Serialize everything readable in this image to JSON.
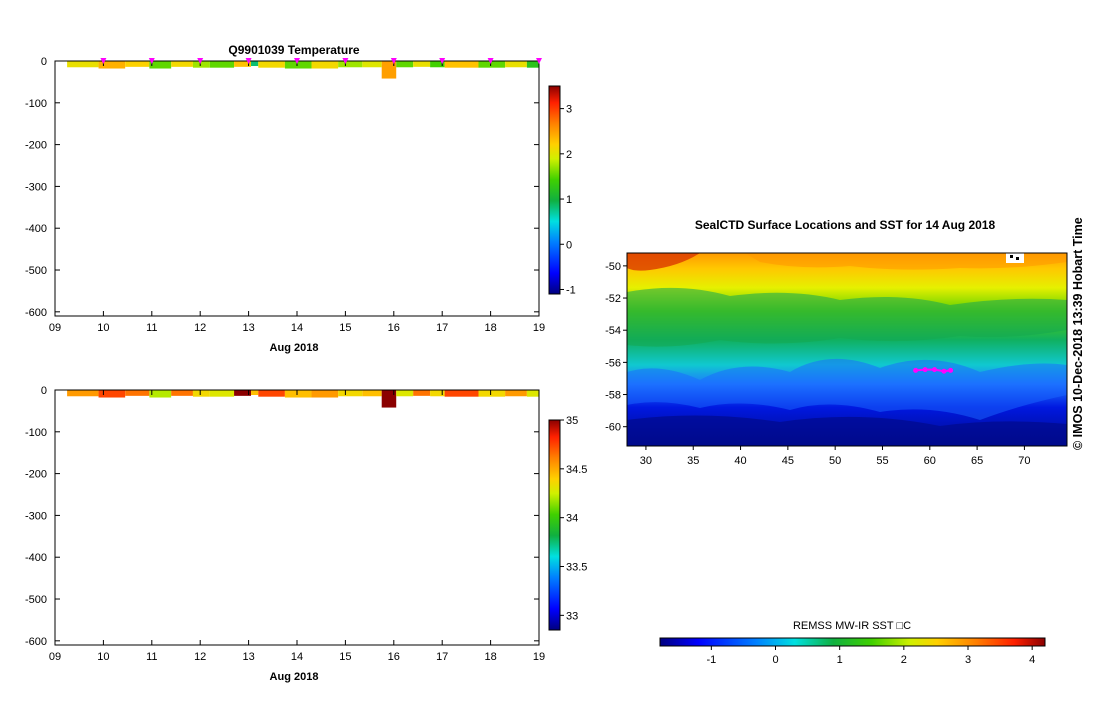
{
  "chart_data": [
    {
      "type": "heatmap",
      "title": "Q9901039  Temperature",
      "xlabel": "Aug 2018",
      "x_ticks": [
        "09",
        "10",
        "11",
        "12",
        "13",
        "14",
        "15",
        "16",
        "17",
        "18",
        "19"
      ],
      "y_ticks": [
        0,
        -100,
        -200,
        -300,
        -400,
        -500,
        -600
      ],
      "xlim": [
        9,
        19
      ],
      "ylim": [
        -610,
        0
      ],
      "colorbar": {
        "ticks": [
          -1,
          0,
          1,
          2,
          3
        ],
        "range": [
          -1.1,
          3.5
        ]
      },
      "surface_markers": [
        10,
        11,
        12,
        13,
        14,
        15,
        16,
        17,
        18,
        19
      ],
      "profiles": [
        {
          "t0": 9.25,
          "t1": 9.9,
          "depth": 15,
          "value": 1.9
        },
        {
          "t0": 9.9,
          "t1": 10.45,
          "depth": 18,
          "value": 2.3
        },
        {
          "t0": 10.45,
          "t1": 10.95,
          "depth": 14,
          "value": 2.1
        },
        {
          "t0": 10.95,
          "t1": 11.4,
          "depth": 18,
          "value": 1.3
        },
        {
          "t0": 11.4,
          "t1": 11.85,
          "depth": 14,
          "value": 2.0
        },
        {
          "t0": 11.85,
          "t1": 12.2,
          "depth": 16,
          "value": 1.5
        },
        {
          "t0": 12.2,
          "t1": 12.7,
          "depth": 16,
          "value": 1.3
        },
        {
          "t0": 12.7,
          "t1": 13.05,
          "depth": 14,
          "value": 2.2
        },
        {
          "t0": 13.05,
          "t1": 13.2,
          "depth": 12,
          "value": 0.6
        },
        {
          "t0": 13.2,
          "t1": 13.75,
          "depth": 16,
          "value": 2.0
        },
        {
          "t0": 13.75,
          "t1": 14.3,
          "depth": 18,
          "value": 1.3
        },
        {
          "t0": 14.3,
          "t1": 14.85,
          "depth": 18,
          "value": 2.0
        },
        {
          "t0": 14.85,
          "t1": 15.35,
          "depth": 15,
          "value": 1.5
        },
        {
          "t0": 15.35,
          "t1": 15.75,
          "depth": 15,
          "value": 1.8
        },
        {
          "t0": 15.75,
          "t1": 16.05,
          "depth": 42,
          "value": 2.4
        },
        {
          "t0": 16.05,
          "t1": 16.4,
          "depth": 15,
          "value": 1.3
        },
        {
          "t0": 16.4,
          "t1": 16.75,
          "depth": 14,
          "value": 1.9
        },
        {
          "t0": 16.75,
          "t1": 17.05,
          "depth": 15,
          "value": 1.2
        },
        {
          "t0": 17.05,
          "t1": 17.75,
          "depth": 16,
          "value": 2.2
        },
        {
          "t0": 17.75,
          "t1": 18.3,
          "depth": 16,
          "value": 1.3
        },
        {
          "t0": 18.3,
          "t1": 18.75,
          "depth": 15,
          "value": 1.9
        },
        {
          "t0": 18.75,
          "t1": 19.0,
          "depth": 16,
          "value": 1.0
        }
      ]
    },
    {
      "type": "heatmap",
      "title": "",
      "xlabel": "Aug 2018",
      "x_ticks": [
        "09",
        "10",
        "11",
        "12",
        "13",
        "14",
        "15",
        "16",
        "17",
        "18",
        "19"
      ],
      "y_ticks": [
        0,
        -100,
        -200,
        -300,
        -400,
        -500,
        -600
      ],
      "xlim": [
        9,
        19
      ],
      "ylim": [
        -610,
        0
      ],
      "colorbar": {
        "ticks": [
          33,
          33.5,
          34,
          34.5,
          35
        ],
        "range": [
          32.85,
          35.0
        ]
      },
      "profiles": [
        {
          "t0": 9.25,
          "t1": 9.9,
          "depth": 15,
          "value": 34.5
        },
        {
          "t0": 9.9,
          "t1": 10.45,
          "depth": 18,
          "value": 34.7
        },
        {
          "t0": 10.45,
          "t1": 10.95,
          "depth": 14,
          "value": 34.6
        },
        {
          "t0": 10.95,
          "t1": 11.4,
          "depth": 18,
          "value": 34.1
        },
        {
          "t0": 11.4,
          "t1": 11.85,
          "depth": 14,
          "value": 34.6
        },
        {
          "t0": 11.85,
          "t1": 12.2,
          "depth": 16,
          "value": 34.3
        },
        {
          "t0": 12.2,
          "t1": 12.7,
          "depth": 16,
          "value": 34.2
        },
        {
          "t0": 12.7,
          "t1": 13.05,
          "depth": 14,
          "value": 35.0
        },
        {
          "t0": 13.05,
          "t1": 13.2,
          "depth": 12,
          "value": 34.4
        },
        {
          "t0": 13.2,
          "t1": 13.75,
          "depth": 16,
          "value": 34.7
        },
        {
          "t0": 13.75,
          "t1": 14.3,
          "depth": 18,
          "value": 34.4
        },
        {
          "t0": 14.3,
          "t1": 14.85,
          "depth": 18,
          "value": 34.5
        },
        {
          "t0": 14.85,
          "t1": 15.35,
          "depth": 15,
          "value": 34.3
        },
        {
          "t0": 15.35,
          "t1": 15.75,
          "depth": 15,
          "value": 34.4
        },
        {
          "t0": 15.75,
          "t1": 16.05,
          "depth": 42,
          "value": 35.0
        },
        {
          "t0": 16.05,
          "t1": 16.4,
          "depth": 15,
          "value": 34.2
        },
        {
          "t0": 16.4,
          "t1": 16.75,
          "depth": 14,
          "value": 34.6
        },
        {
          "t0": 16.75,
          "t1": 17.05,
          "depth": 15,
          "value": 34.3
        },
        {
          "t0": 17.05,
          "t1": 17.75,
          "depth": 16,
          "value": 34.7
        },
        {
          "t0": 17.75,
          "t1": 18.3,
          "depth": 16,
          "value": 34.3
        },
        {
          "t0": 18.3,
          "t1": 18.75,
          "depth": 15,
          "value": 34.5
        },
        {
          "t0": 18.75,
          "t1": 19.0,
          "depth": 16,
          "value": 34.2
        }
      ]
    },
    {
      "type": "heatmap",
      "title": "SealCTD Surface Locations and SST for 14 Aug 2018",
      "x_ticks": [
        30,
        35,
        40,
        45,
        50,
        55,
        60,
        65,
        70
      ],
      "y_ticks": [
        -50,
        -52,
        -54,
        -56,
        -58,
        -60
      ],
      "xlim": [
        28,
        74.5
      ],
      "ylim": [
        -61.2,
        -49.2
      ],
      "colorbar": {
        "label": "REMSS MW-IR SST □C",
        "ticks": [
          -1,
          0,
          1,
          2,
          3,
          4
        ],
        "range": [
          -1.8,
          4.2
        ]
      },
      "track": [
        [
          58.5,
          -56.5
        ],
        [
          59.5,
          -56.45
        ],
        [
          60.5,
          -56.45
        ],
        [
          61.5,
          -56.55
        ],
        [
          62.2,
          -56.5
        ]
      ],
      "credit": "©  IMOS 10-Dec-2018 13:39 Hobart Time"
    }
  ],
  "colors": {
    "cmap": [
      "#00007f",
      "#0000ff",
      "#0080ff",
      "#00e0e0",
      "#10b040",
      "#40d000",
      "#d0f000",
      "#ffd000",
      "#ff8000",
      "#ff2000",
      "#8b0000"
    ],
    "marker": "#ff00ff"
  }
}
